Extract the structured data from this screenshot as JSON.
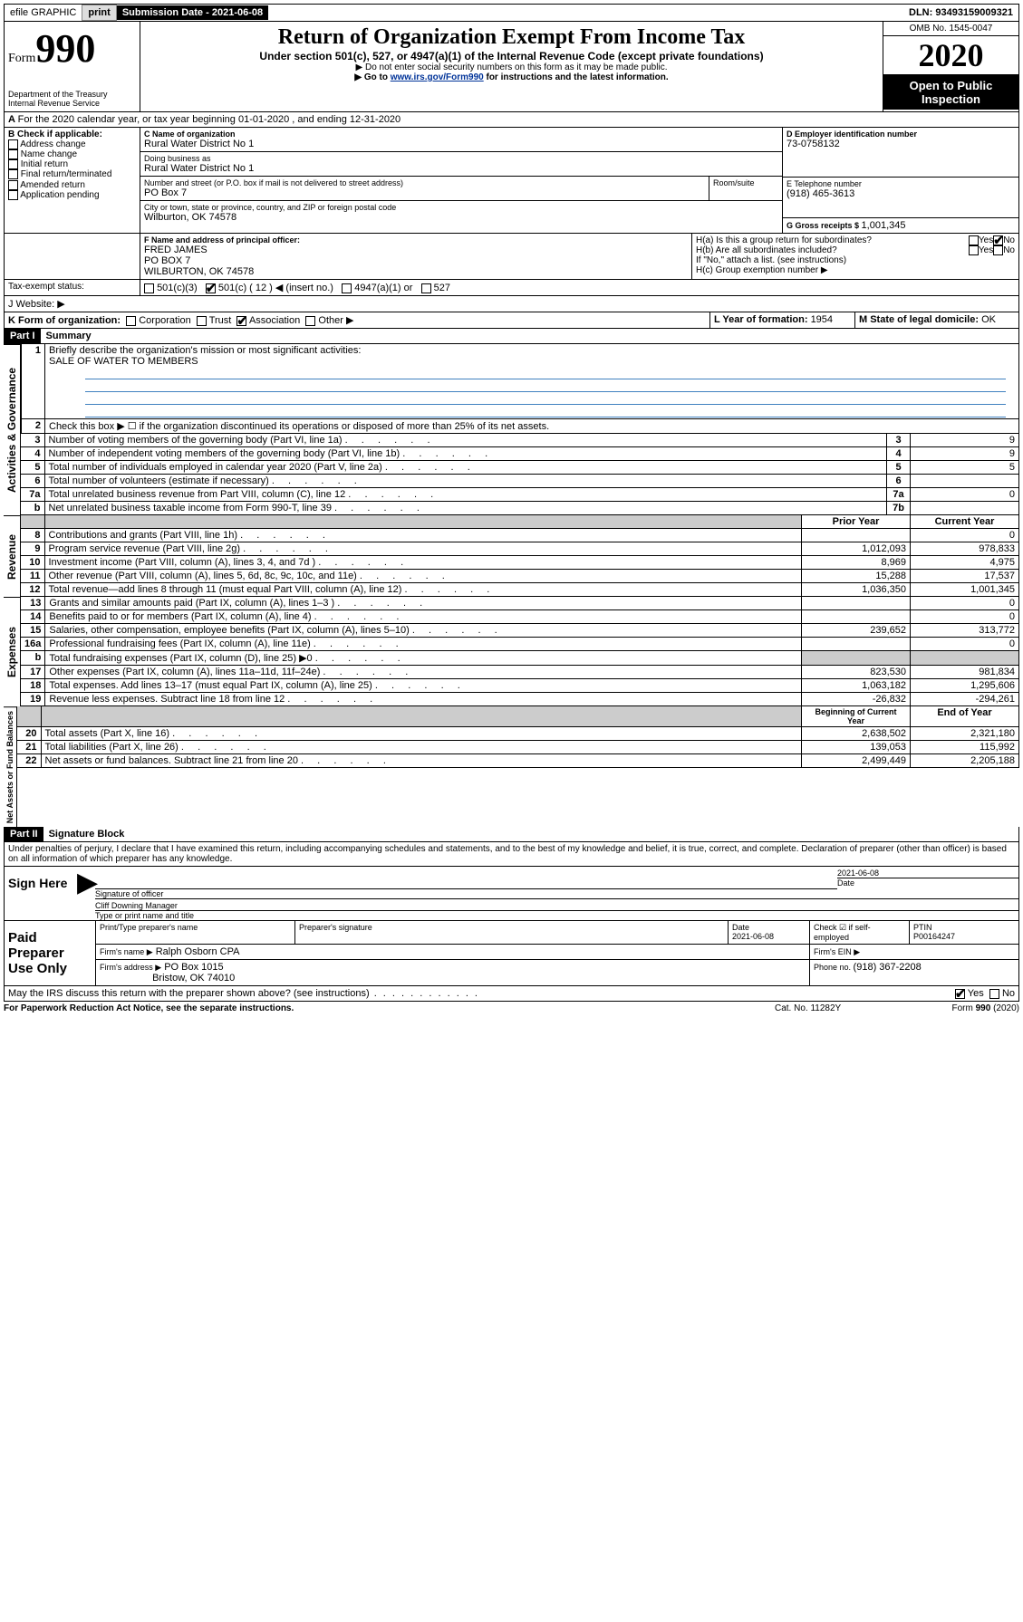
{
  "topbar": {
    "efile": "efile GRAPHIC",
    "print": "print",
    "subdate_label": "Submission Date - ",
    "subdate": "2021-06-08",
    "dln": "DLN: 93493159009321"
  },
  "header": {
    "form_word": "Form",
    "form_num": "990",
    "dept1": "Department of the Treasury",
    "dept2": "Internal Revenue Service",
    "title": "Return of Organization Exempt From Income Tax",
    "sub1": "Under section 501(c), 527, or 4947(a)(1) of the Internal Revenue Code (except private foundations)",
    "sub2": "▶ Do not enter social security numbers on this form as it may be made public.",
    "sub3a": "▶ Go to ",
    "sub3link": "www.irs.gov/Form990",
    "sub3b": " for instructions and the latest information.",
    "omb": "OMB No. 1545-0047",
    "year": "2020",
    "inspect1": "Open to Public",
    "inspect2": "Inspection"
  },
  "lineA": "For the 2020 calendar year, or tax year beginning 01-01-2020   , and ending 12-31-2020",
  "boxB": {
    "label": "B Check if applicable:",
    "items": [
      "Address change",
      "Name change",
      "Initial return",
      "Final return/terminated",
      "Amended return",
      "Application pending"
    ]
  },
  "boxC": {
    "label": "C Name of organization",
    "name": "Rural Water District No 1",
    "dba_label": "Doing business as",
    "dba": "Rural Water District No 1",
    "addr_label": "Number and street (or P.O. box if mail is not delivered to street address)",
    "room_label": "Room/suite",
    "addr": "PO Box 7",
    "city_label": "City or town, state or province, country, and ZIP or foreign postal code",
    "city": "Wilburton, OK  74578"
  },
  "boxD": {
    "label": "D Employer identification number",
    "val": "73-0758132"
  },
  "boxE": {
    "label": "E Telephone number",
    "val": "(918) 465-3613"
  },
  "boxG": {
    "label": "G Gross receipts $ ",
    "val": "1,001,345"
  },
  "boxF": {
    "label": "F  Name and address of principal officer:",
    "name": "FRED JAMES",
    "addr1": "PO BOX 7",
    "addr2": "WILBURTON, OK  74578"
  },
  "boxH": {
    "a": "H(a)  Is this a group return for subordinates?",
    "b": "H(b)  Are all subordinates included?",
    "bnote": "If \"No,\" attach a list. (see instructions)",
    "c": "H(c)  Group exemption number ▶",
    "yes": "Yes",
    "no": "No"
  },
  "boxI": {
    "label": "Tax-exempt status:",
    "o1": "501(c)(3)",
    "o2": "501(c) ( 12 ) ◀ (insert no.)",
    "o3": "4947(a)(1) or",
    "o4": "527"
  },
  "boxJ": {
    "label": "J   Website: ▶"
  },
  "boxK": {
    "label": "K Form of organization:",
    "o1": "Corporation",
    "o2": "Trust",
    "o3": "Association",
    "o4": "Other ▶"
  },
  "boxL": {
    "label": "L Year of formation: ",
    "val": "1954"
  },
  "boxM": {
    "label": "M State of legal domicile: ",
    "val": "OK"
  },
  "part1": {
    "tab": "Part I",
    "title": "Summary"
  },
  "summary": {
    "l1": "Briefly describe the organization's mission or most significant activities:",
    "l1val": "SALE OF WATER TO MEMBERS",
    "l2": "Check this box ▶ ☐  if the organization discontinued its operations or disposed of more than 25% of its net assets.",
    "rows_gov": [
      {
        "n": "3",
        "t": "Number of voting members of the governing body (Part VI, line 1a)",
        "box": "3",
        "v": "9"
      },
      {
        "n": "4",
        "t": "Number of independent voting members of the governing body (Part VI, line 1b)",
        "box": "4",
        "v": "9"
      },
      {
        "n": "5",
        "t": "Total number of individuals employed in calendar year 2020 (Part V, line 2a)",
        "box": "5",
        "v": "5"
      },
      {
        "n": "6",
        "t": "Total number of volunteers (estimate if necessary)",
        "box": "6",
        "v": ""
      },
      {
        "n": "7a",
        "t": "Total unrelated business revenue from Part VIII, column (C), line 12",
        "box": "7a",
        "v": "0"
      },
      {
        "n": "b",
        "t": "Net unrelated business taxable income from Form 990-T, line 39",
        "box": "7b",
        "v": ""
      }
    ],
    "col_prior": "Prior Year",
    "col_curr": "Current Year",
    "rows_rev": [
      {
        "n": "8",
        "t": "Contributions and grants (Part VIII, line 1h)",
        "p": "",
        "c": "0"
      },
      {
        "n": "9",
        "t": "Program service revenue (Part VIII, line 2g)",
        "p": "1,012,093",
        "c": "978,833"
      },
      {
        "n": "10",
        "t": "Investment income (Part VIII, column (A), lines 3, 4, and 7d )",
        "p": "8,969",
        "c": "4,975"
      },
      {
        "n": "11",
        "t": "Other revenue (Part VIII, column (A), lines 5, 6d, 8c, 9c, 10c, and 11e)",
        "p": "15,288",
        "c": "17,537"
      },
      {
        "n": "12",
        "t": "Total revenue—add lines 8 through 11 (must equal Part VIII, column (A), line 12)",
        "p": "1,036,350",
        "c": "1,001,345"
      }
    ],
    "rows_exp": [
      {
        "n": "13",
        "t": "Grants and similar amounts paid (Part IX, column (A), lines 1–3 )",
        "p": "",
        "c": "0"
      },
      {
        "n": "14",
        "t": "Benefits paid to or for members (Part IX, column (A), line 4)",
        "p": "",
        "c": "0"
      },
      {
        "n": "15",
        "t": "Salaries, other compensation, employee benefits (Part IX, column (A), lines 5–10)",
        "p": "239,652",
        "c": "313,772"
      },
      {
        "n": "16a",
        "t": "Professional fundraising fees (Part IX, column (A), line 11e)",
        "p": "",
        "c": "0"
      },
      {
        "n": "b",
        "t": "Total fundraising expenses (Part IX, column (D), line 25) ▶0",
        "p": "shade",
        "c": "shade"
      },
      {
        "n": "17",
        "t": "Other expenses (Part IX, column (A), lines 11a–11d, 11f–24e)",
        "p": "823,530",
        "c": "981,834"
      },
      {
        "n": "18",
        "t": "Total expenses. Add lines 13–17 (must equal Part IX, column (A), line 25)",
        "p": "1,063,182",
        "c": "1,295,606"
      },
      {
        "n": "19",
        "t": "Revenue less expenses. Subtract line 18 from line 12",
        "p": "-26,832",
        "c": "-294,261"
      }
    ],
    "col_beg": "Beginning of Current Year",
    "col_end": "End of Year",
    "rows_net": [
      {
        "n": "20",
        "t": "Total assets (Part X, line 16)",
        "p": "2,638,502",
        "c": "2,321,180"
      },
      {
        "n": "21",
        "t": "Total liabilities (Part X, line 26)",
        "p": "139,053",
        "c": "115,992"
      },
      {
        "n": "22",
        "t": "Net assets or fund balances. Subtract line 21 from line 20",
        "p": "2,499,449",
        "c": "2,205,188"
      }
    ],
    "vlabels": {
      "gov": "Activities & Governance",
      "rev": "Revenue",
      "exp": "Expenses",
      "net": "Net Assets or Fund Balances"
    }
  },
  "part2": {
    "tab": "Part II",
    "title": "Signature Block"
  },
  "sig": {
    "perjury": "Under penalties of perjury, I declare that I have examined this return, including accompanying schedules and statements, and to the best of my knowledge and belief, it is true, correct, and complete. Declaration of preparer (other than officer) is based on all information of which preparer has any knowledge.",
    "sign_here": "Sign Here",
    "sig_officer": "Signature of officer",
    "date1": "2021-06-08",
    "date_lbl": "Date",
    "typed": "Cliff Downing  Manager",
    "typed_lbl": "Type or print name and title",
    "paid": "Paid Preparer Use Only",
    "h_prep": "Print/Type preparer's name",
    "h_sig": "Preparer's signature",
    "h_date": "Date",
    "date2": "2021-06-08",
    "h_check": "Check ☑ if self-employed",
    "h_ptin": "PTIN",
    "ptin": "P00164247",
    "firm_name_lbl": "Firm's name     ▶",
    "firm_name": "Ralph Osborn CPA",
    "firm_ein_lbl": "Firm's EIN ▶",
    "firm_addr_lbl": "Firm's address ▶",
    "firm_addr1": "PO Box 1015",
    "firm_addr2": "Bristow, OK  74010",
    "firm_phone_lbl": "Phone no. ",
    "firm_phone": "(918) 367-2208",
    "discuss": "May the IRS discuss this return with the preparer shown above? (see instructions)",
    "yes": "Yes",
    "no": "No"
  },
  "footer": {
    "pra": "For Paperwork Reduction Act Notice, see the separate instructions.",
    "cat": "Cat. No. 11282Y",
    "form": "Form 990 (2020)"
  }
}
